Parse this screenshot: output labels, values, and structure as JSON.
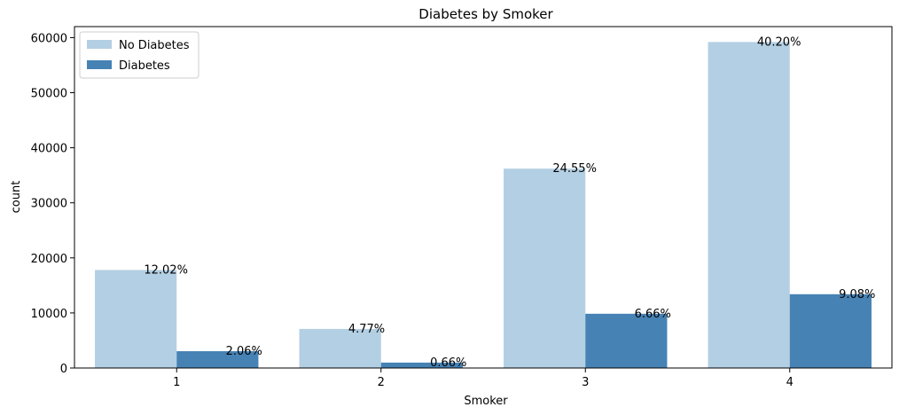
{
  "chart_data": {
    "type": "bar",
    "title": "Diabetes by Smoker",
    "xlabel": "Smoker",
    "ylabel": "count",
    "categories": [
      "1",
      "2",
      "3",
      "4"
    ],
    "ylim": [
      0,
      62000
    ],
    "yticks": [
      0,
      10000,
      20000,
      30000,
      40000,
      50000,
      60000
    ],
    "grid": false,
    "legend_position": "top-left",
    "series": [
      {
        "name": "No Diabetes",
        "color": "#b3cfe3",
        "values": [
          17800,
          7100,
          36200,
          59200
        ],
        "labels": [
          "12.02%",
          "4.77%",
          "24.55%",
          "40.20%"
        ]
      },
      {
        "name": "Diabetes",
        "color": "#4682b4",
        "values": [
          3050,
          980,
          9850,
          13400
        ],
        "labels": [
          "2.06%",
          "0.66%",
          "6.66%",
          "9.08%"
        ]
      }
    ]
  }
}
